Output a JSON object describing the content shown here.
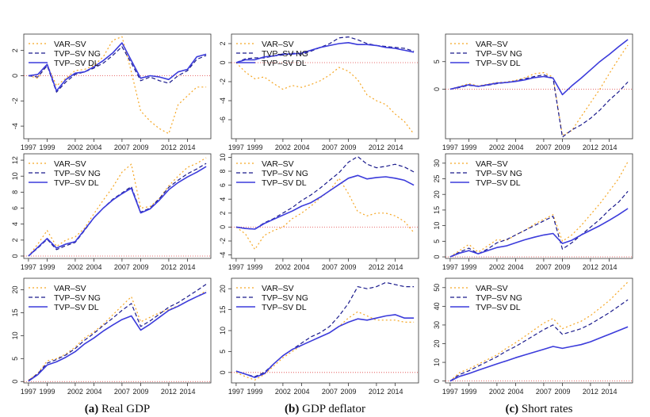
{
  "colors": {
    "var_sv": "#f5a623",
    "tvp_ng": "#1a1a8c",
    "tvp_dl": "#3b3bdb",
    "zero": "#e04040",
    "frame": "#333333"
  },
  "captions": [
    {
      "tag": "(a)",
      "text": "Real GDP"
    },
    {
      "tag": "(b)",
      "text": "GDP deflator"
    },
    {
      "tag": "(c)",
      "text": "Short rates"
    }
  ],
  "chart_data": [
    {
      "type": "line",
      "grid": false,
      "legend": "top-left",
      "x": [
        1997,
        1998,
        1999,
        2000,
        2001,
        2002,
        2003,
        2004,
        2005,
        2006,
        2007,
        2008,
        2009,
        2010,
        2011,
        2012,
        2013,
        2014,
        2015,
        2016
      ],
      "xticks": [
        "1997",
        "1999",
        "2002",
        "2004",
        "2007",
        "2009",
        "2012",
        "2014"
      ],
      "ylim": [
        -5,
        3.3
      ],
      "yticks": [
        -4,
        -2,
        0,
        2
      ],
      "series": [
        {
          "name": "VAR–SV",
          "values": [
            0,
            -0.2,
            0.9,
            -0.8,
            -0.2,
            0.4,
            0.5,
            0.8,
            1.5,
            2.8,
            3.1,
            0.3,
            -2.8,
            -3.6,
            -4.2,
            -4.6,
            -2.3,
            -1.6,
            -0.9,
            -0.9
          ]
        },
        {
          "name": "TVP–SV NG",
          "values": [
            0,
            -0.1,
            0.8,
            -1.3,
            -0.5,
            0.1,
            0.3,
            0.6,
            1.0,
            1.6,
            2.3,
            1.0,
            -0.4,
            -0.1,
            -0.4,
            -0.6,
            0.0,
            0.4,
            1.3,
            1.6
          ]
        },
        {
          "name": "TVP–SV DL",
          "values": [
            0,
            0.1,
            0.9,
            -1.2,
            -0.3,
            0.2,
            0.3,
            0.7,
            1.2,
            1.8,
            2.6,
            1.2,
            -0.2,
            0.0,
            -0.1,
            -0.3,
            0.3,
            0.5,
            1.5,
            1.7
          ]
        }
      ]
    },
    {
      "type": "line",
      "grid": false,
      "legend": "top-left",
      "x": [
        1997,
        1998,
        1999,
        2000,
        2001,
        2002,
        2003,
        2004,
        2005,
        2006,
        2007,
        2008,
        2009,
        2010,
        2011,
        2012,
        2013,
        2014,
        2015,
        2016
      ],
      "xticks": [
        "1997",
        "1999",
        "2002",
        "2004",
        "2007",
        "2009",
        "2012",
        "2014"
      ],
      "ylim": [
        -8,
        3
      ],
      "yticks": [
        -6,
        -4,
        -2,
        0,
        2
      ],
      "series": [
        {
          "name": "VAR–SV",
          "values": [
            0,
            -1,
            -1.7,
            -1.5,
            -2.2,
            -2.8,
            -2.4,
            -2.6,
            -2.3,
            -1.9,
            -1.3,
            -0.5,
            -0.9,
            -1.8,
            -3.4,
            -4.0,
            -4.4,
            -5.4,
            -6.2,
            -7.5
          ]
        },
        {
          "name": "TVP–SV NG",
          "values": [
            0,
            0.4,
            0.5,
            0.5,
            0.7,
            0.8,
            1.0,
            0.9,
            1.2,
            1.6,
            2.0,
            2.6,
            2.7,
            2.4,
            2.0,
            1.8,
            1.7,
            1.6,
            1.5,
            1.2
          ]
        },
        {
          "name": "TVP–SV DL",
          "values": [
            0,
            0.3,
            0.3,
            0.6,
            0.7,
            0.9,
            0.9,
            1.0,
            1.3,
            1.6,
            1.8,
            2.0,
            2.1,
            1.9,
            1.9,
            1.8,
            1.6,
            1.5,
            1.3,
            1.1
          ]
        }
      ]
    },
    {
      "type": "line",
      "grid": false,
      "legend": "top-left",
      "x": [
        1997,
        1998,
        1999,
        2000,
        2001,
        2002,
        2003,
        2004,
        2005,
        2006,
        2007,
        2008,
        2009,
        2010,
        2011,
        2012,
        2013,
        2014,
        2015,
        2016
      ],
      "xticks": [
        "1997",
        "1999",
        "2002",
        "2004",
        "2007",
        "2009",
        "2012",
        "2014"
      ],
      "ylim": [
        -9,
        10
      ],
      "yticks": [
        0,
        5
      ],
      "series": [
        {
          "name": "VAR–SV",
          "values": [
            0,
            0.5,
            1.0,
            0.6,
            0.9,
            1.2,
            1.3,
            1.6,
            2.1,
            2.8,
            3.0,
            2.2,
            -8.4,
            -7.5,
            -5.0,
            -2.5,
            0,
            2.8,
            5.5,
            8.0
          ]
        },
        {
          "name": "TVP–SV NG",
          "values": [
            0,
            0.3,
            0.7,
            0.5,
            0.7,
            1.0,
            1.2,
            1.5,
            1.9,
            2.3,
            2.6,
            2.0,
            -8.7,
            -7.4,
            -6.5,
            -5.3,
            -3.8,
            -2.0,
            -0.5,
            1.3
          ]
        },
        {
          "name": "TVP–SV DL",
          "values": [
            0,
            0.4,
            0.8,
            0.5,
            0.8,
            1.1,
            1.2,
            1.4,
            1.7,
            2.1,
            2.3,
            2.0,
            -1.0,
            0.6,
            2.0,
            3.5,
            5.0,
            6.3,
            7.7,
            9.0
          ]
        }
      ]
    },
    {
      "type": "line",
      "grid": false,
      "legend": "top-left",
      "x": [
        1997,
        1998,
        1999,
        2000,
        2001,
        2002,
        2003,
        2004,
        2005,
        2006,
        2007,
        2008,
        2009,
        2010,
        2011,
        2012,
        2013,
        2014,
        2015,
        2016
      ],
      "xticks": [
        "1997",
        "1999",
        "2002",
        "2004",
        "2007",
        "2009",
        "2012",
        "2014"
      ],
      "ylim": [
        -0.3,
        12.8
      ],
      "yticks": [
        0,
        2,
        4,
        6,
        8,
        10,
        12
      ],
      "series": [
        {
          "name": "VAR–SV",
          "values": [
            0,
            1.5,
            3.2,
            1.2,
            2.0,
            2.4,
            3.5,
            5.3,
            7.0,
            8.6,
            10.5,
            11.5,
            6.0,
            6.2,
            7.2,
            8.8,
            10.0,
            11.1,
            11.6,
            12.3
          ]
        },
        {
          "name": "TVP–SV NG",
          "values": [
            0,
            1.0,
            2.1,
            0.8,
            1.3,
            1.7,
            3.2,
            4.8,
            6.0,
            7.1,
            7.9,
            8.7,
            5.5,
            6.0,
            7.2,
            8.6,
            9.5,
            10.3,
            10.9,
            11.6
          ]
        },
        {
          "name": "TVP–SV DL",
          "values": [
            0,
            1.1,
            2.2,
            1.0,
            1.5,
            1.8,
            3.3,
            4.8,
            6.0,
            7.0,
            7.8,
            8.5,
            5.4,
            5.9,
            7.0,
            8.3,
            9.2,
            9.9,
            10.5,
            11.2
          ]
        }
      ]
    },
    {
      "type": "line",
      "grid": false,
      "legend": "top-left",
      "x": [
        1997,
        1998,
        1999,
        2000,
        2001,
        2002,
        2003,
        2004,
        2005,
        2006,
        2007,
        2008,
        2009,
        2010,
        2011,
        2012,
        2013,
        2014,
        2015,
        2016
      ],
      "xticks": [
        "1997",
        "1999",
        "2002",
        "2004",
        "2007",
        "2009",
        "2012",
        "2014"
      ],
      "ylim": [
        -4.5,
        10.5
      ],
      "yticks": [
        -4,
        -2,
        0,
        2,
        4,
        6,
        8,
        10
      ],
      "series": [
        {
          "name": "VAR–SV",
          "values": [
            0,
            -1,
            -3.2,
            -1.2,
            -0.5,
            0,
            1.2,
            2.0,
            3.0,
            4.2,
            5.2,
            7.0,
            4.8,
            2.2,
            1.6,
            2.0,
            2.0,
            1.6,
            0.8,
            -0.8
          ]
        },
        {
          "name": "TVP–SV NG",
          "values": [
            0,
            -0.2,
            -0.3,
            0.6,
            1.2,
            2.0,
            2.8,
            3.8,
            4.6,
            5.6,
            6.7,
            7.8,
            9.3,
            10.1,
            9.0,
            8.5,
            8.7,
            9.0,
            8.6,
            7.9
          ]
        },
        {
          "name": "TVP–SV DL",
          "values": [
            0,
            -0.2,
            -0.3,
            0.5,
            1.1,
            1.7,
            2.3,
            3.0,
            3.5,
            4.3,
            5.2,
            6.1,
            7.0,
            7.4,
            6.9,
            7.1,
            7.2,
            7.0,
            6.7,
            6.0
          ]
        }
      ]
    },
    {
      "type": "line",
      "grid": false,
      "legend": "top-left",
      "x": [
        1997,
        1998,
        1999,
        2000,
        2001,
        2002,
        2003,
        2004,
        2005,
        2006,
        2007,
        2008,
        2009,
        2010,
        2011,
        2012,
        2013,
        2014,
        2015,
        2016
      ],
      "xticks": [
        "1997",
        "1999",
        "2002",
        "2004",
        "2007",
        "2009",
        "2012",
        "2014"
      ],
      "ylim": [
        -0.5,
        33
      ],
      "yticks": [
        0,
        5,
        10,
        15,
        20,
        25,
        30
      ],
      "series": [
        {
          "name": "VAR–SV",
          "values": [
            0,
            2.0,
            4.0,
            1.5,
            3.5,
            5.5,
            5.2,
            7.0,
            8.5,
            10.5,
            12.0,
            13.5,
            5.0,
            7.0,
            10.0,
            13.5,
            17.0,
            21.0,
            25.0,
            30.5
          ]
        },
        {
          "name": "TVP–SV NG",
          "values": [
            0,
            1.5,
            2.8,
            1.0,
            2.5,
            4.5,
            5.5,
            7.0,
            8.5,
            10.0,
            11.5,
            13.0,
            2.5,
            4.5,
            7.0,
            9.5,
            12.0,
            15.0,
            17.5,
            21.0
          ]
        },
        {
          "name": "TVP–SV DL",
          "values": [
            0,
            1.2,
            2.0,
            1.0,
            2.0,
            3.0,
            3.5,
            4.5,
            5.5,
            6.3,
            7.0,
            7.5,
            4.3,
            5.3,
            7.0,
            8.5,
            10.0,
            11.7,
            13.5,
            15.5
          ]
        }
      ]
    },
    {
      "type": "line",
      "grid": false,
      "legend": "top-left",
      "x": [
        1997,
        1998,
        1999,
        2000,
        2001,
        2002,
        2003,
        2004,
        2005,
        2006,
        2007,
        2008,
        2009,
        2010,
        2011,
        2012,
        2013,
        2014,
        2015,
        2016
      ],
      "xticks": [
        "1997",
        "1999",
        "2002",
        "2004",
        "2007",
        "2009",
        "2012",
        "2014"
      ],
      "ylim": [
        -0.3,
        22.5
      ],
      "yticks": [
        0,
        5,
        10,
        15,
        20
      ],
      "series": [
        {
          "name": "VAR–SV",
          "values": [
            0.3,
            1.8,
            4.5,
            5.0,
            6.0,
            7.5,
            9.5,
            10.8,
            12.5,
            14.5,
            16.5,
            18.5,
            13.0,
            14.0,
            15.0,
            15.7,
            16.5,
            17.5,
            18.5,
            19.8
          ]
        },
        {
          "name": "TVP–SV NG",
          "values": [
            0.2,
            1.7,
            4.0,
            4.8,
            5.8,
            7.2,
            9.0,
            10.5,
            12.2,
            13.8,
            15.5,
            17.0,
            12.0,
            13.2,
            14.7,
            16.2,
            17.2,
            18.5,
            19.8,
            21.2
          ]
        },
        {
          "name": "TVP–SV DL",
          "values": [
            0.1,
            1.5,
            3.6,
            4.3,
            5.3,
            6.5,
            8.2,
            9.5,
            11.0,
            12.3,
            13.5,
            14.3,
            11.2,
            12.5,
            14.0,
            15.5,
            16.4,
            17.5,
            18.5,
            19.4
          ]
        }
      ]
    },
    {
      "type": "line",
      "grid": false,
      "legend": "top-left",
      "x": [
        1997,
        1998,
        1999,
        2000,
        2001,
        2002,
        2003,
        2004,
        2005,
        2006,
        2007,
        2008,
        2009,
        2010,
        2011,
        2012,
        2013,
        2014,
        2015,
        2016
      ],
      "xticks": [
        "1997",
        "1999",
        "2002",
        "2004",
        "2007",
        "2009",
        "2012",
        "2014"
      ],
      "ylim": [
        -2.5,
        22.5
      ],
      "yticks": [
        0,
        5,
        10,
        15,
        20
      ],
      "series": [
        {
          "name": "VAR–SV",
          "values": [
            0,
            -1,
            -1.8,
            -0.5,
            1.5,
            3.5,
            5.0,
            6.5,
            7.5,
            8.5,
            9.5,
            11.0,
            13.0,
            14.5,
            13.5,
            12.5,
            12.5,
            12.5,
            12.0,
            12.0
          ]
        },
        {
          "name": "TVP–SV NG",
          "values": [
            0.3,
            -0.4,
            -1,
            0,
            2.0,
            4.0,
            5.5,
            7.0,
            8.5,
            9.5,
            11.0,
            13.5,
            16.5,
            20.5,
            20.0,
            20.5,
            21.5,
            21.0,
            20.5,
            20.5
          ]
        },
        {
          "name": "TVP–SV DL",
          "values": [
            0.3,
            -0.4,
            -1.2,
            -0.3,
            2.0,
            4.0,
            5.5,
            6.5,
            7.5,
            8.5,
            9.5,
            11.0,
            12.0,
            12.8,
            12.5,
            13.0,
            13.5,
            13.8,
            13.0,
            13.0
          ]
        }
      ]
    },
    {
      "type": "line",
      "grid": false,
      "legend": "top-left",
      "x": [
        1997,
        1998,
        1999,
        2000,
        2001,
        2002,
        2003,
        2004,
        2005,
        2006,
        2007,
        2008,
        2009,
        2010,
        2011,
        2012,
        2013,
        2014,
        2015,
        2016
      ],
      "xticks": [
        "1997",
        "1999",
        "2002",
        "2004",
        "2007",
        "2009",
        "2012",
        "2014"
      ],
      "ylim": [
        -1,
        55
      ],
      "yticks": [
        0,
        10,
        20,
        30,
        40,
        50
      ],
      "series": [
        {
          "name": "VAR–SV",
          "values": [
            0,
            4.5,
            6.5,
            9.0,
            11.5,
            14.0,
            17.5,
            20.5,
            24.0,
            27.5,
            31.0,
            33.5,
            28.0,
            30.0,
            32.0,
            35.0,
            39.0,
            43.0,
            48.0,
            53.0
          ]
        },
        {
          "name": "TVP–SV NG",
          "values": [
            0,
            3.5,
            5.5,
            8.0,
            10.5,
            13.0,
            16.0,
            18.5,
            21.5,
            24.5,
            27.5,
            30.0,
            25.0,
            26.5,
            28.0,
            30.5,
            33.5,
            36.5,
            40.0,
            43.5
          ]
        },
        {
          "name": "TVP–SV DL",
          "values": [
            0,
            2.5,
            4.0,
            5.8,
            7.5,
            9.2,
            10.8,
            12.5,
            14.0,
            15.5,
            17.0,
            18.5,
            17.5,
            18.5,
            19.5,
            21.0,
            23.0,
            25.0,
            27.0,
            29.0
          ]
        }
      ]
    }
  ]
}
